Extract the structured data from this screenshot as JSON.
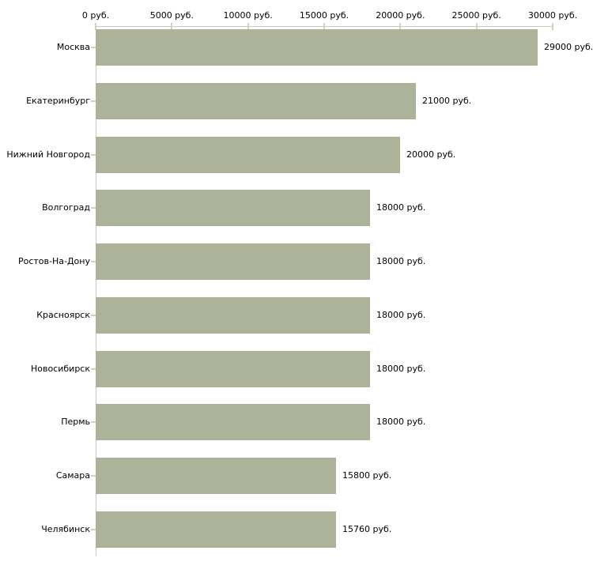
{
  "chart_data": {
    "type": "bar",
    "orientation": "horizontal",
    "title": "",
    "xlabel": "",
    "ylabel": "",
    "unit": "руб.",
    "xlim": [
      0,
      30000
    ],
    "grid": false,
    "legend": false,
    "categories": [
      "Москва",
      "Екатеринбург",
      "Нижний Новгород",
      "Волгоград",
      "Ростов-На-Дону",
      "Красноярск",
      "Новосибирск",
      "Пермь",
      "Самара",
      "Челябинск"
    ],
    "values": [
      29000,
      21000,
      20000,
      18000,
      18000,
      18000,
      18000,
      18000,
      15800,
      15760
    ],
    "value_labels": [
      "29000 руб.",
      "21000 руб.",
      "20000 руб.",
      "18000 руб.",
      "18000 руб.",
      "18000 руб.",
      "18000 руб.",
      "18000 руб.",
      "15800 руб.",
      "15760 руб."
    ],
    "x_ticks": [
      {
        "value": 0,
        "label": "0 руб."
      },
      {
        "value": 5000,
        "label": "5000 руб."
      },
      {
        "value": 10000,
        "label": "10000 руб."
      },
      {
        "value": 15000,
        "label": "15000 руб."
      },
      {
        "value": 20000,
        "label": "20000 руб."
      },
      {
        "value": 25000,
        "label": "25000 руб."
      },
      {
        "value": 30000,
        "label": "30000 руб."
      }
    ],
    "colors": {
      "bar": "#adb399",
      "axis_line": "#c8c8c8",
      "tick_mark": "#d6d2ae",
      "text": "#000000",
      "background": "#ffffff"
    }
  }
}
